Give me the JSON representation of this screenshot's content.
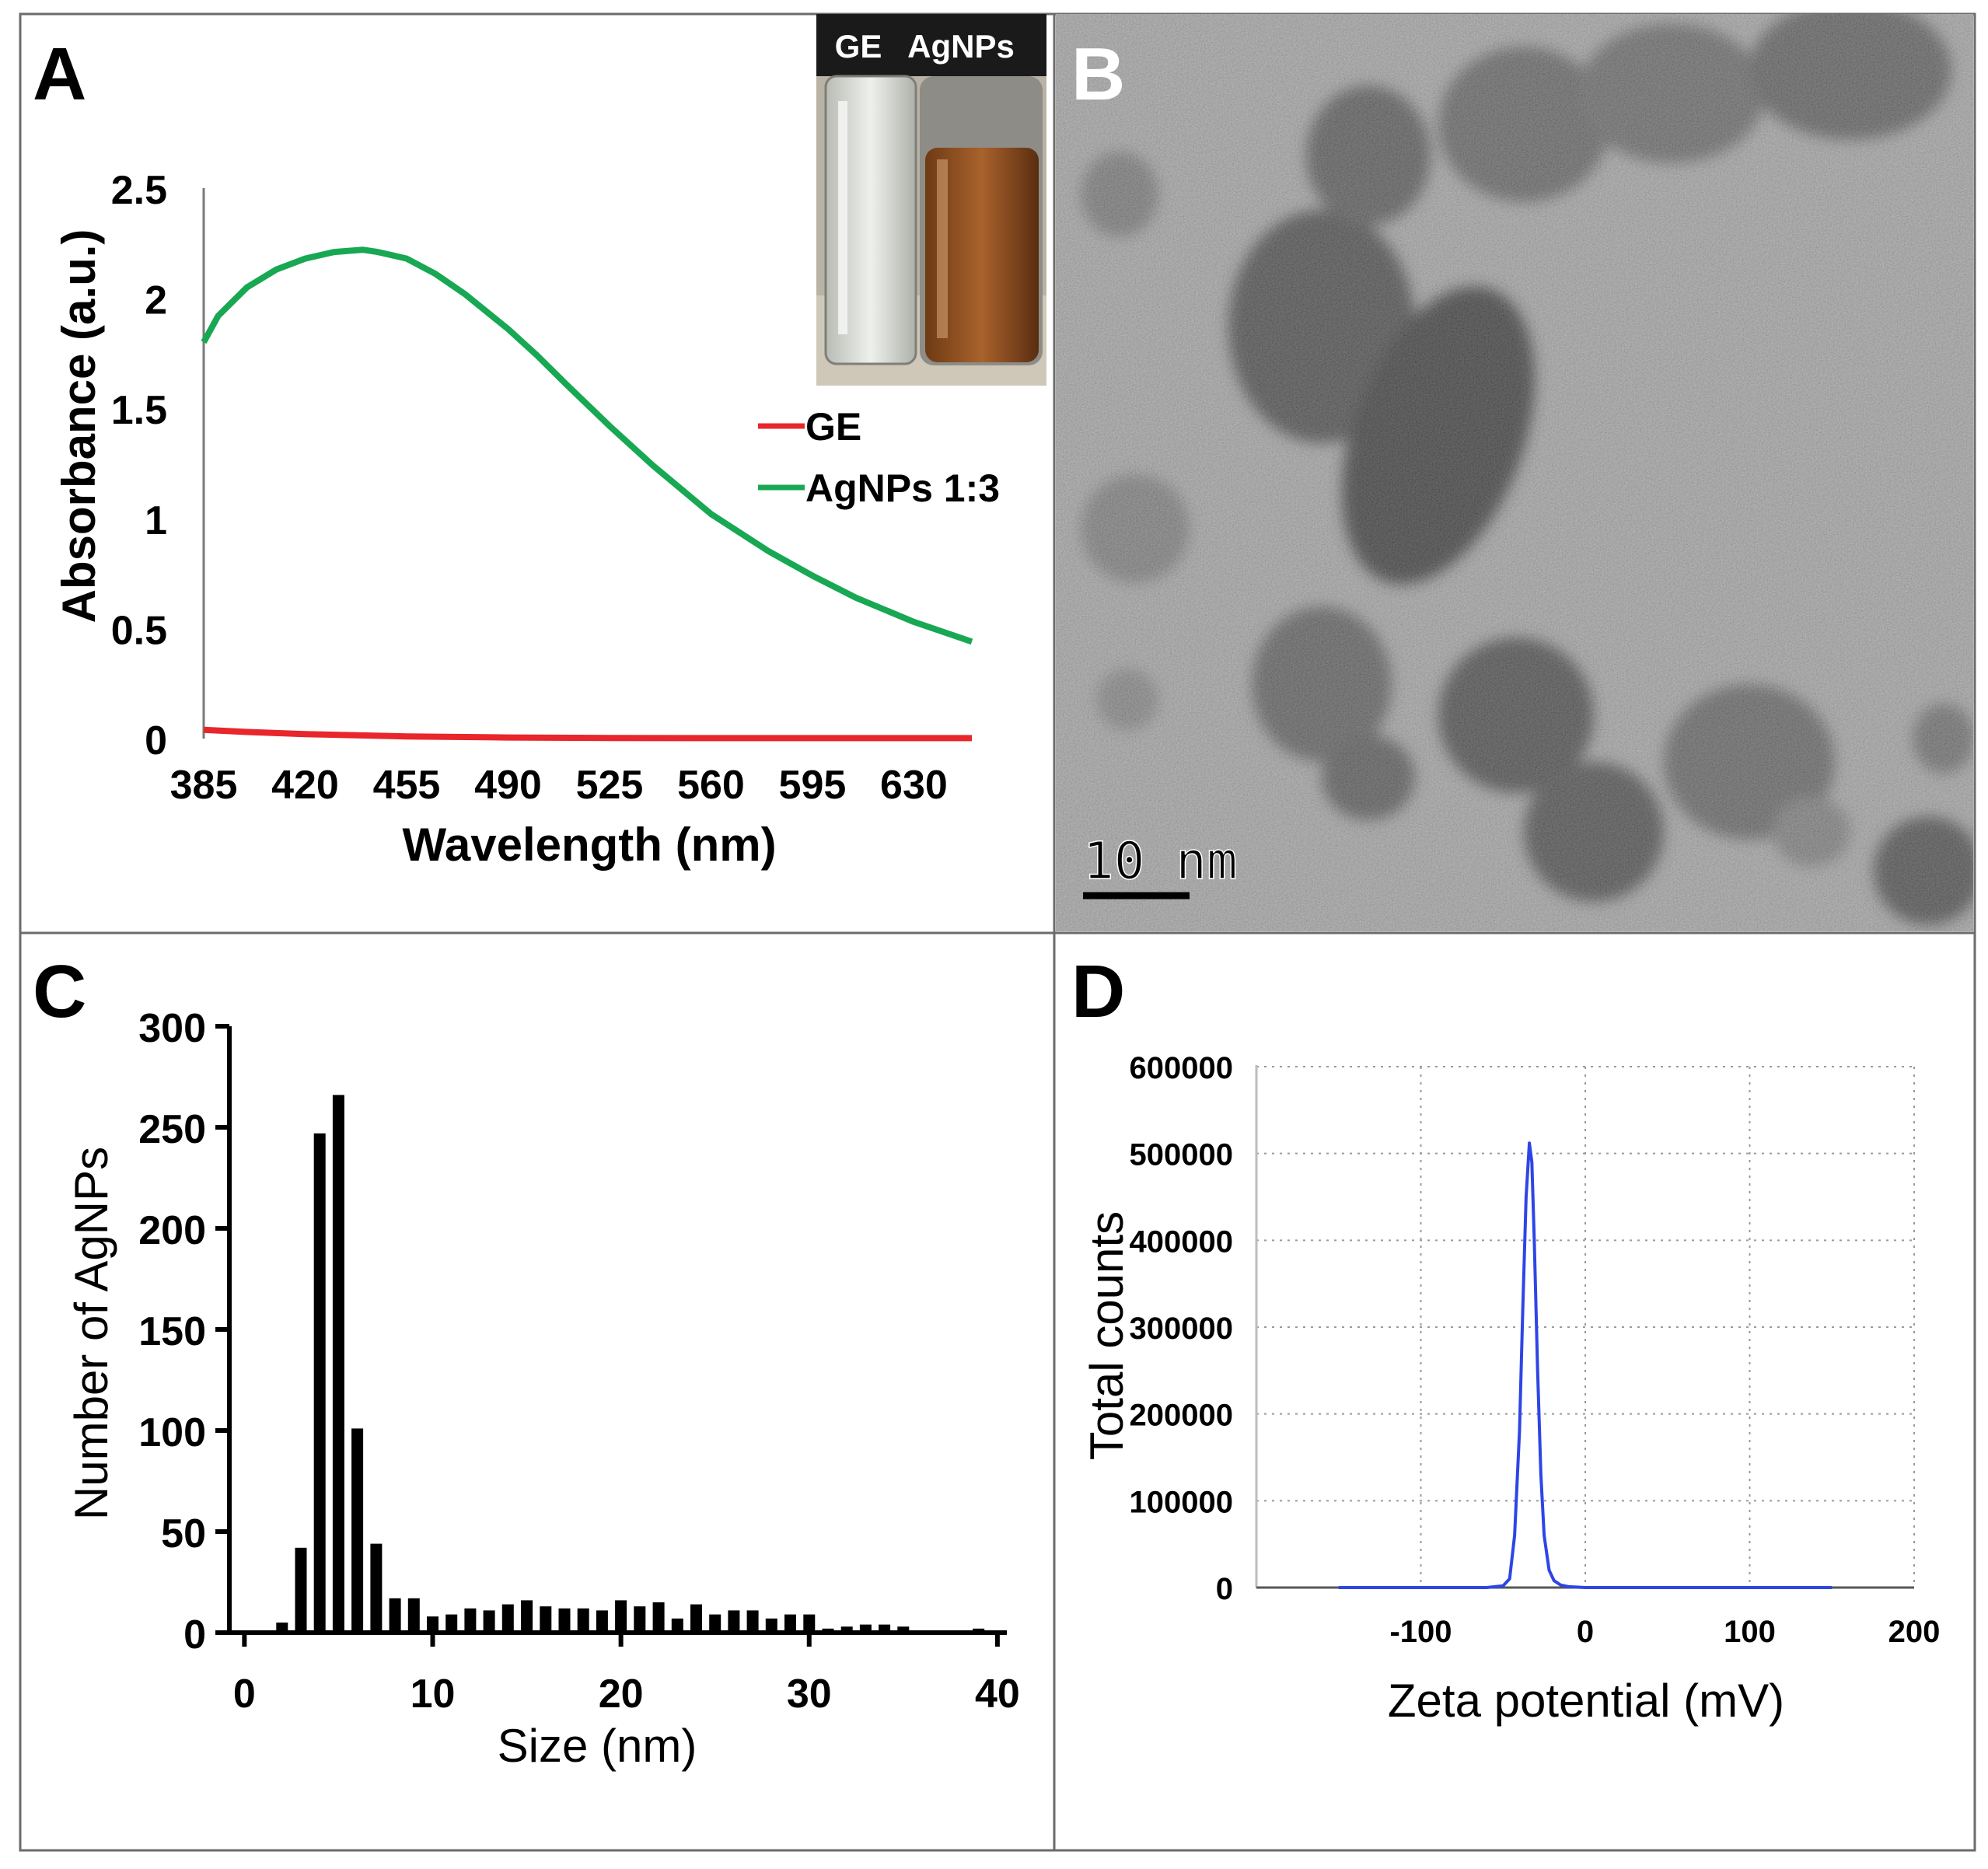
{
  "figure": {
    "panels": {
      "a": {
        "letter": "A"
      },
      "b": {
        "letter": "B",
        "scale_bar_label": "10 nm"
      },
      "c": {
        "letter": "C"
      },
      "d": {
        "letter": "D"
      }
    },
    "inset": {
      "label_ge": "GE",
      "label_agnps": "AgNPs"
    }
  },
  "colors": {
    "ge_line": "#e8262b",
    "agnps_line": "#18a853",
    "zeta_line": "#2e45e6",
    "bars": "#000000",
    "frame": "#6b6b6b",
    "grid": "#9a9a9a"
  },
  "chart_data": [
    {
      "id": "uv_vis",
      "type": "line",
      "title": "",
      "xlabel": "Wavelength (nm)",
      "ylabel": "Absorbance (a.u.)",
      "xlim": [
        385,
        650
      ],
      "ylim": [
        0,
        2.5
      ],
      "xticks": [
        385,
        420,
        455,
        490,
        525,
        560,
        595,
        630
      ],
      "xtick_labels": [
        "385",
        "420",
        "455",
        "490",
        "525",
        "560",
        "595",
        "630"
      ],
      "yticks": [
        0,
        0.5,
        1,
        1.5,
        2,
        2.5
      ],
      "ytick_labels": [
        "0",
        "0.5",
        "1",
        "1.5",
        "2",
        "2.5"
      ],
      "legend": "right",
      "series": [
        {
          "name": "GE",
          "color": "#e8262b",
          "x": [
            385,
            400,
            420,
            455,
            490,
            525,
            560,
            595,
            630,
            650
          ],
          "y": [
            0.04,
            0.03,
            0.02,
            0.01,
            0.005,
            0.003,
            0.002,
            0.002,
            0.002,
            0.002
          ]
        },
        {
          "name": "AgNPs 1:3",
          "color": "#18a853",
          "x": [
            385,
            390,
            400,
            410,
            420,
            430,
            440,
            445,
            455,
            465,
            475,
            490,
            500,
            510,
            525,
            540,
            560,
            580,
            595,
            610,
            630,
            650
          ],
          "y": [
            1.8,
            1.92,
            2.05,
            2.13,
            2.18,
            2.21,
            2.22,
            2.21,
            2.18,
            2.11,
            2.02,
            1.86,
            1.74,
            1.61,
            1.42,
            1.24,
            1.02,
            0.85,
            0.74,
            0.64,
            0.53,
            0.44
          ]
        }
      ]
    },
    {
      "id": "size_histogram",
      "type": "bar",
      "title": "",
      "xlabel": "Size (nm)",
      "ylabel": "Number of AgNPs",
      "xlim": [
        -0.8,
        40.5
      ],
      "ylim": [
        0,
        300
      ],
      "xticks": [
        0,
        10,
        20,
        30,
        40
      ],
      "xtick_labels": [
        "0",
        "10",
        "20",
        "30",
        "40"
      ],
      "yticks": [
        0,
        50,
        100,
        150,
        200,
        250,
        300
      ],
      "ytick_labels": [
        "0",
        "50",
        "100",
        "150",
        "200",
        "250",
        "300"
      ],
      "categories": [
        1,
        2,
        3,
        4,
        5,
        6,
        7,
        8,
        9,
        10,
        11,
        12,
        13,
        14,
        15,
        16,
        17,
        18,
        19,
        20,
        21,
        22,
        23,
        24,
        25,
        26,
        27,
        28,
        29,
        30,
        31,
        32,
        33,
        34,
        35,
        36,
        37,
        38,
        39,
        40
      ],
      "values": [
        1,
        5,
        42,
        247,
        266,
        101,
        44,
        17,
        17,
        8,
        9,
        12,
        11,
        14,
        16,
        13,
        12,
        12,
        11,
        16,
        13,
        15,
        7,
        14,
        9,
        11,
        11,
        7,
        9,
        9,
        2,
        3,
        4,
        4,
        3,
        1,
        1,
        1,
        2,
        1
      ]
    },
    {
      "id": "zeta_potential",
      "type": "line",
      "title": "",
      "xlabel": "Zeta potential (mV)",
      "ylabel": "Total counts",
      "xlim": [
        -200,
        200
      ],
      "ylim": [
        0,
        600000
      ],
      "xticks": [
        -100,
        0,
        100,
        200
      ],
      "xtick_labels": [
        "-100",
        "0",
        "100",
        "200"
      ],
      "yticks": [
        0,
        100000,
        200000,
        300000,
        400000,
        500000,
        600000
      ],
      "ytick_labels": [
        "0",
        "100000",
        "200000",
        "300000",
        "400000",
        "500000",
        "600000"
      ],
      "grid": true,
      "series": [
        {
          "name": "Total counts",
          "color": "#2e45e6",
          "x": [
            -150,
            -60,
            -50,
            -46,
            -43,
            -40,
            -38,
            -36,
            -34,
            -32.5,
            -31,
            -29,
            -27,
            -25,
            -22,
            -19,
            -15,
            -10,
            0,
            150
          ],
          "y": [
            0,
            0,
            2000,
            10000,
            60000,
            180000,
            320000,
            450000,
            512000,
            490000,
            400000,
            250000,
            130000,
            60000,
            20000,
            8000,
            3000,
            1000,
            0,
            0
          ]
        }
      ]
    }
  ]
}
